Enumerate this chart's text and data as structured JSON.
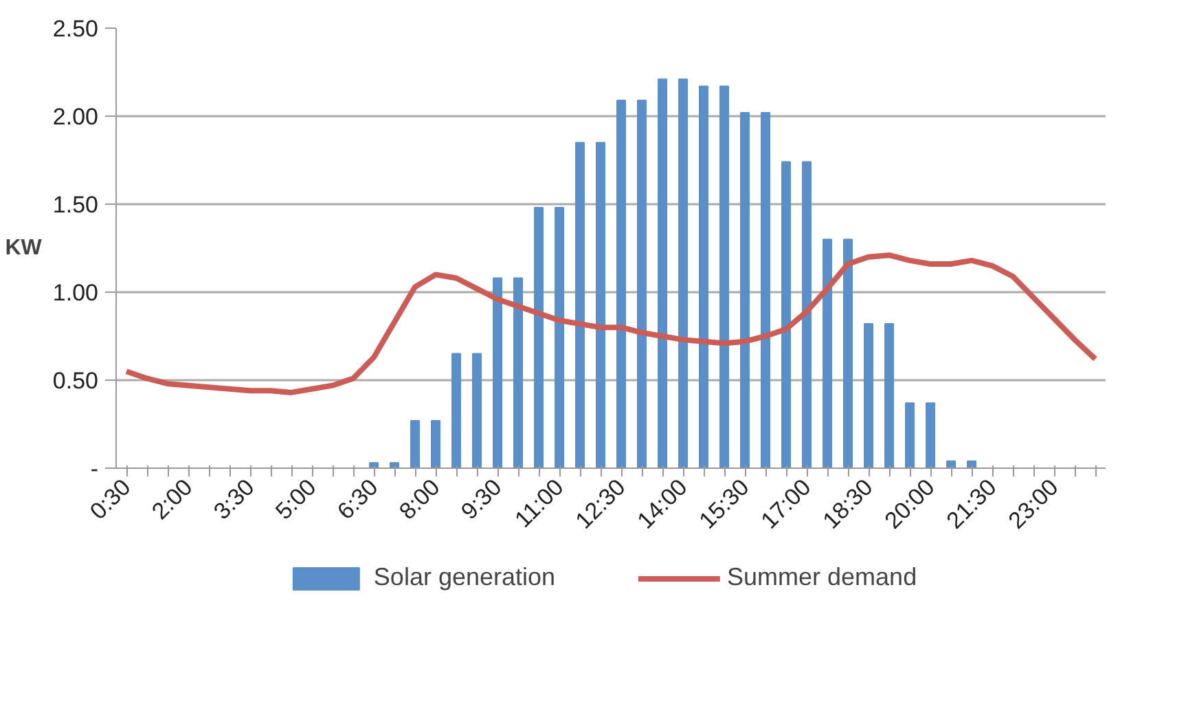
{
  "chart_data": {
    "type": "bar",
    "ylabel": "KW",
    "categories": [
      "0:30",
      null,
      null,
      "2:00",
      null,
      null,
      "3:30",
      null,
      null,
      "5:00",
      null,
      null,
      "6:30",
      null,
      null,
      "8:00",
      null,
      null,
      "9:30",
      null,
      null,
      "11:00",
      null,
      null,
      "12:30",
      null,
      null,
      "14:00",
      null,
      null,
      "15:30",
      null,
      null,
      "17:00",
      null,
      null,
      "18:30",
      null,
      null,
      "20:00",
      null,
      null,
      "21:30",
      null,
      null,
      "23:00",
      null,
      null
    ],
    "series": [
      {
        "name": "Solar generation",
        "color": "#5b8fc9",
        "values": [
          0,
          0,
          0,
          0,
          0,
          0,
          0,
          0,
          0,
          0,
          0,
          0,
          0.03,
          0.03,
          0.27,
          0.27,
          0.65,
          0.65,
          1.08,
          1.08,
          1.48,
          1.48,
          1.85,
          1.85,
          2.09,
          2.09,
          2.21,
          2.21,
          2.17,
          2.17,
          2.02,
          2.02,
          1.74,
          1.74,
          1.3,
          1.3,
          0.82,
          0.82,
          0.37,
          0.37,
          0.04,
          0.04,
          0,
          0,
          0,
          0,
          0,
          0
        ]
      },
      {
        "name": "Summer demand",
        "type": "line",
        "color": "#cb5c56",
        "values": [
          0.55,
          0.51,
          0.48,
          0.47,
          0.46,
          0.45,
          0.44,
          0.44,
          0.43,
          0.45,
          0.47,
          0.51,
          0.63,
          0.83,
          1.03,
          1.1,
          1.08,
          1.02,
          0.96,
          0.92,
          0.88,
          0.84,
          0.82,
          0.8,
          0.8,
          0.77,
          0.75,
          0.73,
          0.72,
          0.71,
          0.72,
          0.75,
          0.79,
          0.89,
          1.02,
          1.16,
          1.2,
          1.21,
          1.18,
          1.16,
          1.16,
          1.18,
          1.15,
          1.09,
          0.97,
          0.85,
          0.73,
          0.62
        ]
      }
    ],
    "ylim": [
      0,
      2.5
    ],
    "yticks": [
      {
        "value": 0,
        "label": "-"
      },
      {
        "value": 0.5,
        "label": "0.50"
      },
      {
        "value": 1,
        "label": "1.00"
      },
      {
        "value": 1.5,
        "label": "1.50"
      },
      {
        "value": 2,
        "label": "2.00"
      },
      {
        "value": 2.5,
        "label": "2.50"
      }
    ],
    "grid": "y",
    "legend": "bottom"
  }
}
